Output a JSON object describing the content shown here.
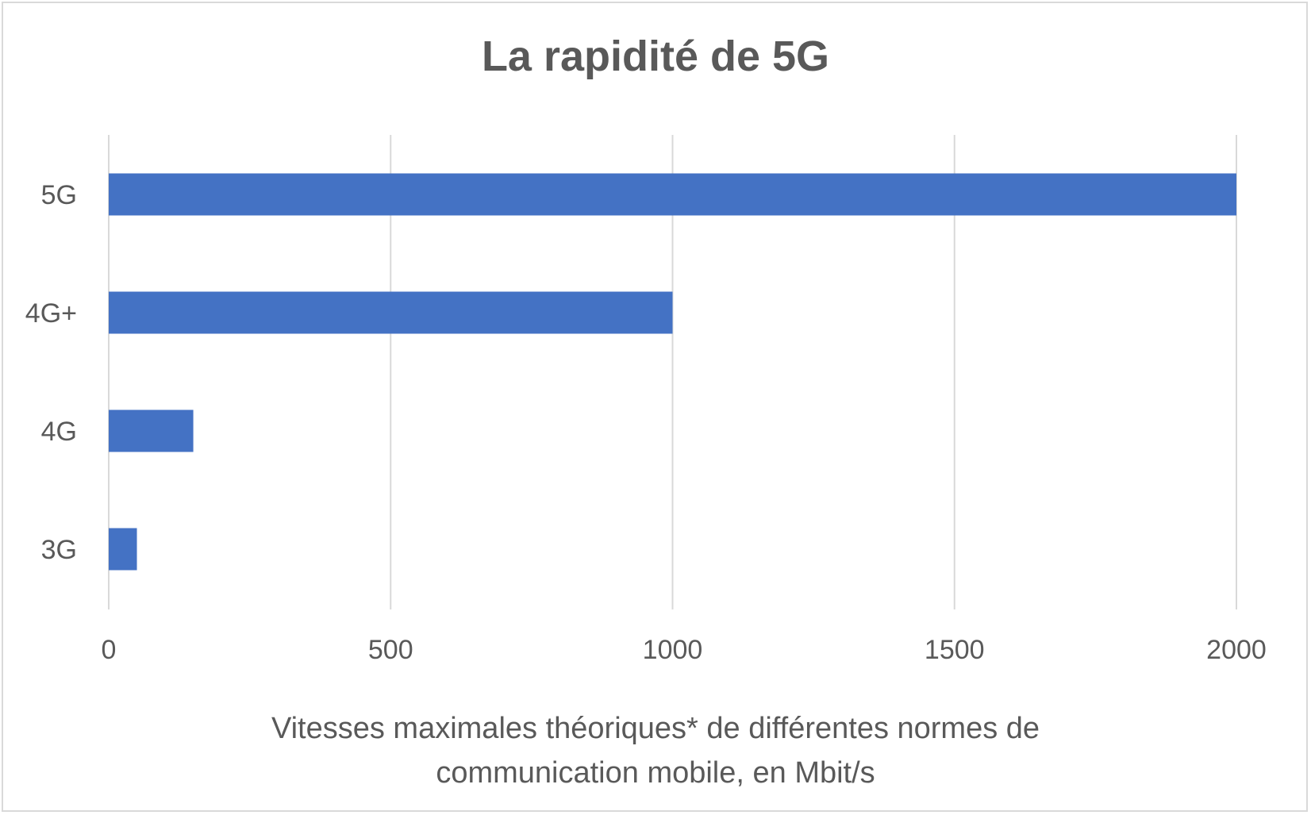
{
  "chart_data": {
    "type": "bar",
    "orientation": "horizontal",
    "title": "La rapidité de 5G",
    "xlabel": "Vitesses maximales théoriques* de différentes normes de communication mobile, en Mbit/s",
    "ylabel": "",
    "categories": [
      "5G",
      "4G+",
      "4G",
      "3G"
    ],
    "values": [
      2000,
      1000,
      150,
      50
    ],
    "xlim": [
      0,
      2000
    ],
    "xticks": [
      0,
      500,
      1000,
      1500,
      2000
    ],
    "grid": true,
    "legend": "none",
    "bar_color": "#4472c4",
    "grid_color": "#d9d9d9",
    "text_color": "#595959"
  }
}
